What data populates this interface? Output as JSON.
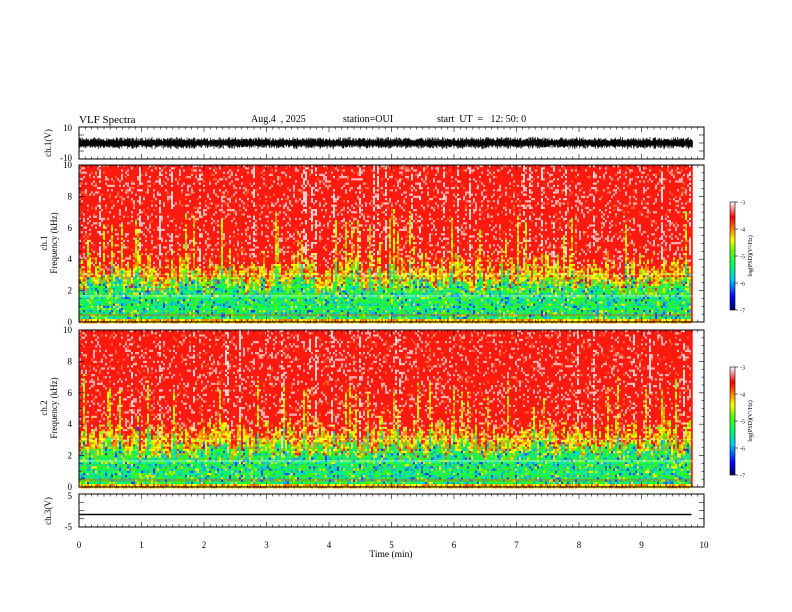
{
  "header": {
    "title": "VLF Spectra",
    "date": "Aug.4  , 2025",
    "station": "station=OUI",
    "start": "start  UT  =   12: 50: 0"
  },
  "chart_data": [
    {
      "type": "line",
      "panel": "ch1-waveform",
      "ylabel": "ch.1(V)",
      "ylim": [
        -10,
        10
      ],
      "yticks": [
        "10",
        "-10"
      ],
      "xlim": [
        0,
        10
      ],
      "note_visual": "dense noisy waveform roughly between -3 and 3 V (extends to plot edge near 9.8 min)",
      "color": "#000000"
    },
    {
      "type": "heatmap",
      "panel": "ch1-spectrogram",
      "ylabel": "ch.1\nFrequency  (kHz)",
      "ylim": [
        0,
        10
      ],
      "yticks": [
        "0",
        "2",
        "4",
        "6",
        "8",
        "10"
      ],
      "xlim": [
        0,
        10
      ],
      "colorbar": {
        "label": "log(PSD)(V²/Hz)",
        "range": [
          -7,
          -3
        ],
        "ticks": [
          "-3",
          "-4",
          "-5",
          "-6",
          "-7"
        ]
      }
    },
    {
      "type": "heatmap",
      "panel": "ch2-spectrogram",
      "ylabel": "ch.2\nFrequency  (kHz)",
      "ylim": [
        0,
        10
      ],
      "yticks": [
        "0",
        "2",
        "4",
        "6",
        "8",
        "10"
      ],
      "xlim": [
        0,
        10
      ],
      "colorbar": {
        "label": "log(PSD)(V²/Hz)",
        "range": [
          -7,
          -3
        ],
        "ticks": [
          "-3",
          "-4",
          "-5",
          "-6",
          "-7"
        ]
      }
    },
    {
      "type": "line",
      "panel": "ch3-waveform",
      "ylabel": "ch.3(V)",
      "ylim": [
        -5,
        5
      ],
      "yticks": [
        "5",
        "-5"
      ],
      "xlim": [
        0,
        10
      ],
      "x": [
        0,
        9.8
      ],
      "values": [
        -1.2,
        -1.2
      ],
      "color": "#000000"
    }
  ],
  "xaxis": {
    "label": "Time  (min)",
    "ticks": [
      "0",
      "1",
      "2",
      "3",
      "4",
      "5",
      "6",
      "7",
      "8",
      "9",
      "10"
    ]
  },
  "colors": {
    "colormap": [
      "#000080",
      "#0000ff",
      "#00c0ff",
      "#00ff80",
      "#40ff00",
      "#ffff00",
      "#ff8000",
      "#ff0000",
      "#ffffff"
    ]
  }
}
